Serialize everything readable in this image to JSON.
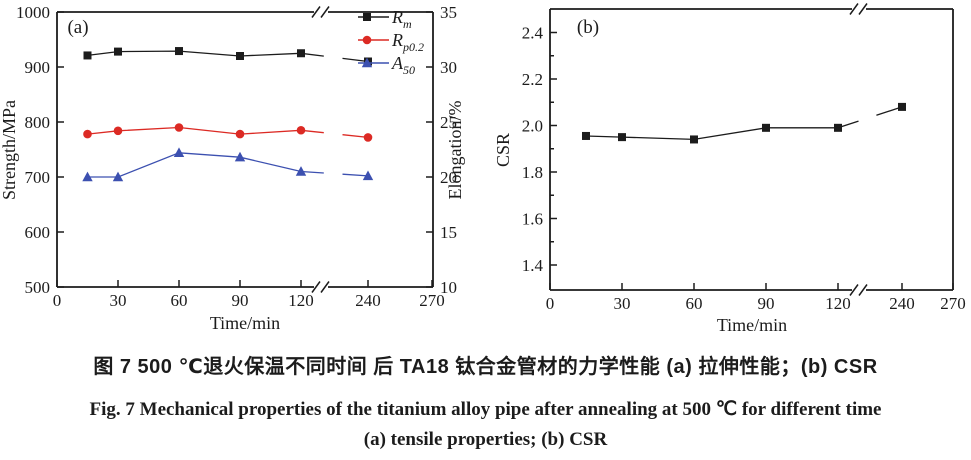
{
  "figure": {
    "caption_zh": "图 7  500 ℃退火保温不同时间 后 TA18 钛合金管材的力学性能  (a) 拉伸性能；(b) CSR",
    "caption_en_line1": "Fig. 7  Mechanical properties of the titanium alloy pipe after annealing at 500 ℃ for different time",
    "caption_en_line2": "(a) tensile properties; (b) CSR"
  },
  "chart_data": [
    {
      "type": "line",
      "panel_label": "(a)",
      "xlabel": "Time/min",
      "ylabel": "Strength/MPa",
      "ylabel_right": "Elongation/%",
      "x": [
        15,
        30,
        60,
        90,
        120,
        240
      ],
      "xticks": [
        "0",
        "30",
        "60",
        "90",
        "120",
        "240",
        "270"
      ],
      "x_break_between": [
        120,
        240
      ],
      "xlim": [
        0,
        270
      ],
      "ylim": [
        500,
        1000
      ],
      "yticks": [
        "500",
        "600",
        "700",
        "800",
        "900",
        "1000"
      ],
      "ylim_right": [
        10,
        35
      ],
      "yticks_right": [
        "10",
        "15",
        "20",
        "25",
        "30",
        "35"
      ],
      "grid": false,
      "legend_position": "top-right",
      "series": [
        {
          "name": "Rm",
          "label_base": "R",
          "label_sub": "m",
          "marker": "square",
          "color": "#1c1c1c",
          "axis": "left",
          "values": [
            921,
            928,
            929,
            920,
            925,
            910
          ]
        },
        {
          "name": "Rp0.2",
          "label_base": "R",
          "label_sub": "p0.2",
          "marker": "circle",
          "color": "#dc2a24",
          "axis": "left",
          "values": [
            778,
            784,
            790,
            778,
            785,
            772
          ]
        },
        {
          "name": "A50",
          "label_base": "A",
          "label_sub": "50",
          "marker": "triangle",
          "color": "#3c50b0",
          "axis": "right",
          "values": [
            20.0,
            20.0,
            22.2,
            21.8,
            20.5,
            20.1
          ]
        }
      ]
    },
    {
      "type": "line",
      "panel_label": "(b)",
      "xlabel": "Time/min",
      "ylabel": "CSR",
      "x": [
        15,
        30,
        60,
        90,
        120,
        240
      ],
      "xticks": [
        "0",
        "30",
        "60",
        "90",
        "120",
        "240",
        "270"
      ],
      "x_break_between": [
        120,
        240
      ],
      "xlim": [
        0,
        270
      ],
      "ylim": [
        1.3,
        2.5
      ],
      "yticks": [
        "1.4",
        "1.6",
        "1.8",
        "2.0",
        "2.2",
        "2.4"
      ],
      "y_minor_ticks": [
        1.5,
        1.7,
        1.9,
        2.1,
        2.3
      ],
      "grid": false,
      "legend_position": "none",
      "series": [
        {
          "name": "CSR",
          "marker": "square",
          "color": "#1c1c1c",
          "axis": "left",
          "values": [
            1.955,
            1.95,
            1.94,
            1.99,
            1.99,
            2.08
          ]
        }
      ]
    }
  ]
}
